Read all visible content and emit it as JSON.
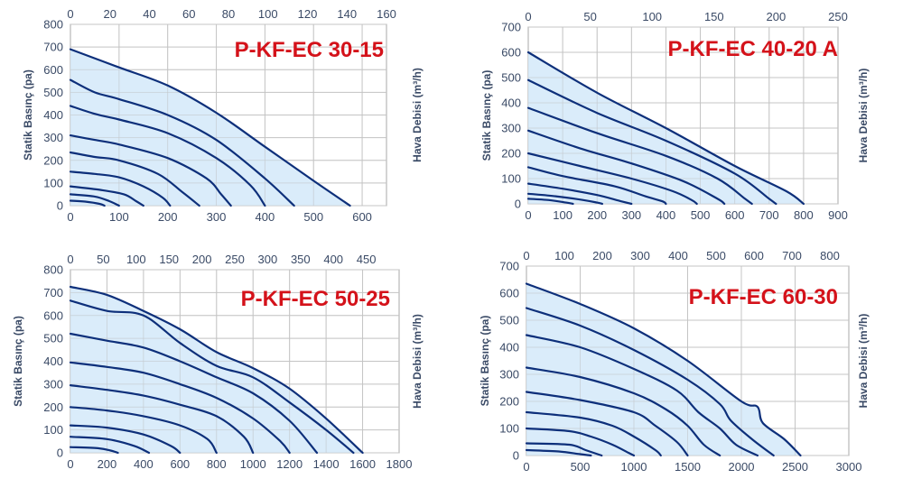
{
  "colors": {
    "curve": "#0d2f7a",
    "fill": "#d4e9f9",
    "grid": "#c4c4c4",
    "frame": "#a8a8a8",
    "text": "#3a4a66",
    "model": "#d4121a"
  },
  "chart_data": [
    {
      "type": "line",
      "title": "P-KF-EC 30-15",
      "ylabel": "Statik Basınç (pa)",
      "xlabel_right": "Hava Debisi (m³/h)",
      "yticks": [
        "0",
        "100",
        "200",
        "300",
        "400",
        "500",
        "600",
        "700",
        "800"
      ],
      "ylim": [
        0,
        800
      ],
      "top_ticks": [
        "0",
        "20",
        "40",
        "60",
        "80",
        "100",
        "120",
        "140",
        "160"
      ],
      "top_lim": [
        0,
        160
      ],
      "bottom_ticks": [
        "0",
        "100",
        "200",
        "300",
        "400",
        "500",
        "600"
      ],
      "xlim": [
        0,
        650
      ],
      "series": [
        {
          "x": [
            0,
            100,
            200,
            300,
            400,
            500,
            575
          ],
          "y": [
            690,
            610,
            530,
            410,
            260,
            110,
            0
          ]
        },
        {
          "x": [
            0,
            50,
            100,
            200,
            300,
            400,
            460
          ],
          "y": [
            555,
            500,
            470,
            400,
            290,
            120,
            0
          ]
        },
        {
          "x": [
            0,
            50,
            100,
            200,
            300,
            370,
            400
          ],
          "y": [
            440,
            405,
            380,
            320,
            210,
            90,
            0
          ]
        },
        {
          "x": [
            0,
            50,
            100,
            200,
            280,
            310,
            330
          ],
          "y": [
            310,
            290,
            270,
            210,
            120,
            50,
            0
          ]
        },
        {
          "x": [
            0,
            50,
            100,
            180,
            230,
            265
          ],
          "y": [
            235,
            215,
            200,
            140,
            60,
            0
          ]
        },
        {
          "x": [
            0,
            50,
            100,
            150,
            190,
            205
          ],
          "y": [
            150,
            140,
            125,
            85,
            35,
            0
          ]
        },
        {
          "x": [
            0,
            60,
            110,
            135,
            150
          ],
          "y": [
            85,
            70,
            50,
            20,
            0
          ]
        },
        {
          "x": [
            0,
            50,
            80,
            100
          ],
          "y": [
            50,
            40,
            20,
            0
          ]
        },
        {
          "x": [
            0,
            30,
            60,
            70
          ],
          "y": [
            22,
            18,
            8,
            0
          ]
        }
      ]
    },
    {
      "type": "line",
      "title": "P-KF-EC 40-20 A",
      "ylabel": "Statik Basınç (pa)",
      "xlabel_right": "Hava Debisi (m³/h)",
      "yticks": [
        "0",
        "100",
        "200",
        "300",
        "400",
        "500",
        "600",
        "700"
      ],
      "ylim": [
        0,
        700
      ],
      "top_ticks": [
        "0",
        "50",
        "100",
        "150",
        "200",
        "250"
      ],
      "top_lim": [
        0,
        250
      ],
      "bottom_ticks": [
        "0",
        "100",
        "200",
        "300",
        "400",
        "500",
        "600",
        "700",
        "800",
        "900"
      ],
      "xlim": [
        0,
        900
      ],
      "series": [
        {
          "x": [
            0,
            200,
            400,
            600,
            750,
            800
          ],
          "y": [
            600,
            440,
            300,
            150,
            50,
            0
          ]
        },
        {
          "x": [
            0,
            200,
            400,
            600,
            700,
            720
          ],
          "y": [
            490,
            360,
            250,
            120,
            20,
            0
          ]
        },
        {
          "x": [
            0,
            200,
            400,
            550,
            630,
            650
          ],
          "y": [
            380,
            280,
            190,
            100,
            20,
            0
          ]
        },
        {
          "x": [
            0,
            150,
            300,
            450,
            550,
            570
          ],
          "y": [
            290,
            220,
            160,
            90,
            20,
            0
          ]
        },
        {
          "x": [
            0,
            150,
            300,
            420,
            475,
            490
          ],
          "y": [
            200,
            150,
            100,
            50,
            15,
            0
          ]
        },
        {
          "x": [
            0,
            100,
            250,
            340,
            390,
            400
          ],
          "y": [
            145,
            110,
            70,
            30,
            10,
            0
          ]
        },
        {
          "x": [
            0,
            100,
            200,
            270,
            300
          ],
          "y": [
            80,
            60,
            35,
            10,
            0
          ]
        },
        {
          "x": [
            0,
            80,
            160,
            200,
            215
          ],
          "y": [
            40,
            30,
            15,
            5,
            0
          ]
        },
        {
          "x": [
            0,
            60,
            110,
            130
          ],
          "y": [
            20,
            15,
            5,
            0
          ]
        }
      ]
    },
    {
      "type": "line",
      "title": "P-KF-EC 50-25",
      "ylabel": "Statik Basınç (pa)",
      "xlabel_right": "Hava Debisi (m³/h)",
      "yticks": [
        "0",
        "100",
        "200",
        "300",
        "400",
        "500",
        "600",
        "700",
        "800"
      ],
      "ylim": [
        0,
        800
      ],
      "top_ticks": [
        "0",
        "50",
        "100",
        "150",
        "200",
        "250",
        "300",
        "350",
        "400",
        "450"
      ],
      "top_lim": [
        0,
        500
      ],
      "bottom_ticks": [
        "0",
        "200",
        "400",
        "600",
        "800",
        "1000",
        "1200",
        "1400",
        "1600",
        "1800"
      ],
      "xlim": [
        0,
        1800
      ],
      "series": [
        {
          "x": [
            0,
            200,
            400,
            600,
            800,
            1000,
            1200,
            1400,
            1600
          ],
          "y": [
            725,
            690,
            620,
            540,
            440,
            370,
            280,
            150,
            0
          ]
        },
        {
          "x": [
            0,
            200,
            400,
            600,
            800,
            1000,
            1200,
            1400,
            1550
          ],
          "y": [
            665,
            620,
            600,
            480,
            380,
            330,
            220,
            100,
            0
          ]
        },
        {
          "x": [
            0,
            200,
            400,
            600,
            800,
            1000,
            1200,
            1350
          ],
          "y": [
            520,
            490,
            460,
            400,
            330,
            260,
            140,
            0
          ]
        },
        {
          "x": [
            0,
            200,
            400,
            600,
            800,
            1000,
            1150,
            1200
          ],
          "y": [
            395,
            375,
            350,
            300,
            240,
            150,
            50,
            0
          ]
        },
        {
          "x": [
            0,
            200,
            400,
            600,
            800,
            950,
            1000
          ],
          "y": [
            295,
            275,
            250,
            210,
            160,
            70,
            0
          ]
        },
        {
          "x": [
            0,
            200,
            400,
            600,
            750,
            800
          ],
          "y": [
            200,
            185,
            160,
            120,
            60,
            0
          ]
        },
        {
          "x": [
            0,
            200,
            400,
            550,
            600
          ],
          "y": [
            120,
            110,
            80,
            30,
            0
          ]
        },
        {
          "x": [
            0,
            200,
            350,
            430
          ],
          "y": [
            70,
            60,
            30,
            0
          ]
        },
        {
          "x": [
            0,
            150,
            220,
            260
          ],
          "y": [
            25,
            20,
            10,
            0
          ]
        }
      ]
    },
    {
      "type": "line",
      "title": "P-KF-EC 60-30",
      "ylabel": "Statik Basınç (pa)",
      "xlabel_right": "Hava Debisi (m³/h)",
      "yticks": [
        "0",
        "100",
        "200",
        "300",
        "400",
        "500",
        "600",
        "700"
      ],
      "ylim": [
        0,
        700
      ],
      "top_ticks": [
        "0",
        "100",
        "200",
        "300",
        "400",
        "500",
        "600",
        "700",
        "800"
      ],
      "top_lim": [
        0,
        850
      ],
      "bottom_ticks": [
        "0",
        "500",
        "1000",
        "1500",
        "2000",
        "2500",
        "3000"
      ],
      "xlim": [
        0,
        3000
      ],
      "series": [
        {
          "x": [
            0,
            500,
            1000,
            1500,
            2000,
            2150,
            2200,
            2400,
            2550
          ],
          "y": [
            635,
            560,
            470,
            350,
            200,
            180,
            120,
            60,
            0
          ]
        },
        {
          "x": [
            0,
            500,
            1000,
            1500,
            1800,
            1900,
            2100,
            2300
          ],
          "y": [
            545,
            480,
            390,
            280,
            190,
            130,
            60,
            0
          ]
        },
        {
          "x": [
            0,
            500,
            1000,
            1400,
            1600,
            1800,
            1950,
            2150
          ],
          "y": [
            445,
            400,
            320,
            240,
            160,
            100,
            40,
            0
          ]
        },
        {
          "x": [
            0,
            500,
            1000,
            1300,
            1500,
            1650,
            1800
          ],
          "y": [
            325,
            290,
            230,
            170,
            110,
            40,
            0
          ]
        },
        {
          "x": [
            0,
            500,
            1000,
            1200,
            1400,
            1500
          ],
          "y": [
            235,
            205,
            160,
            110,
            50,
            0
          ]
        },
        {
          "x": [
            0,
            500,
            800,
            1000,
            1200,
            1250
          ],
          "y": [
            160,
            140,
            110,
            70,
            20,
            0
          ]
        },
        {
          "x": [
            0,
            400,
            600,
            800,
            950,
            1000
          ],
          "y": [
            100,
            90,
            70,
            40,
            10,
            0
          ]
        },
        {
          "x": [
            0,
            400,
            550,
            700
          ],
          "y": [
            45,
            40,
            20,
            0
          ]
        },
        {
          "x": [
            0,
            300,
            500,
            600
          ],
          "y": [
            20,
            15,
            5,
            0
          ]
        }
      ]
    }
  ]
}
